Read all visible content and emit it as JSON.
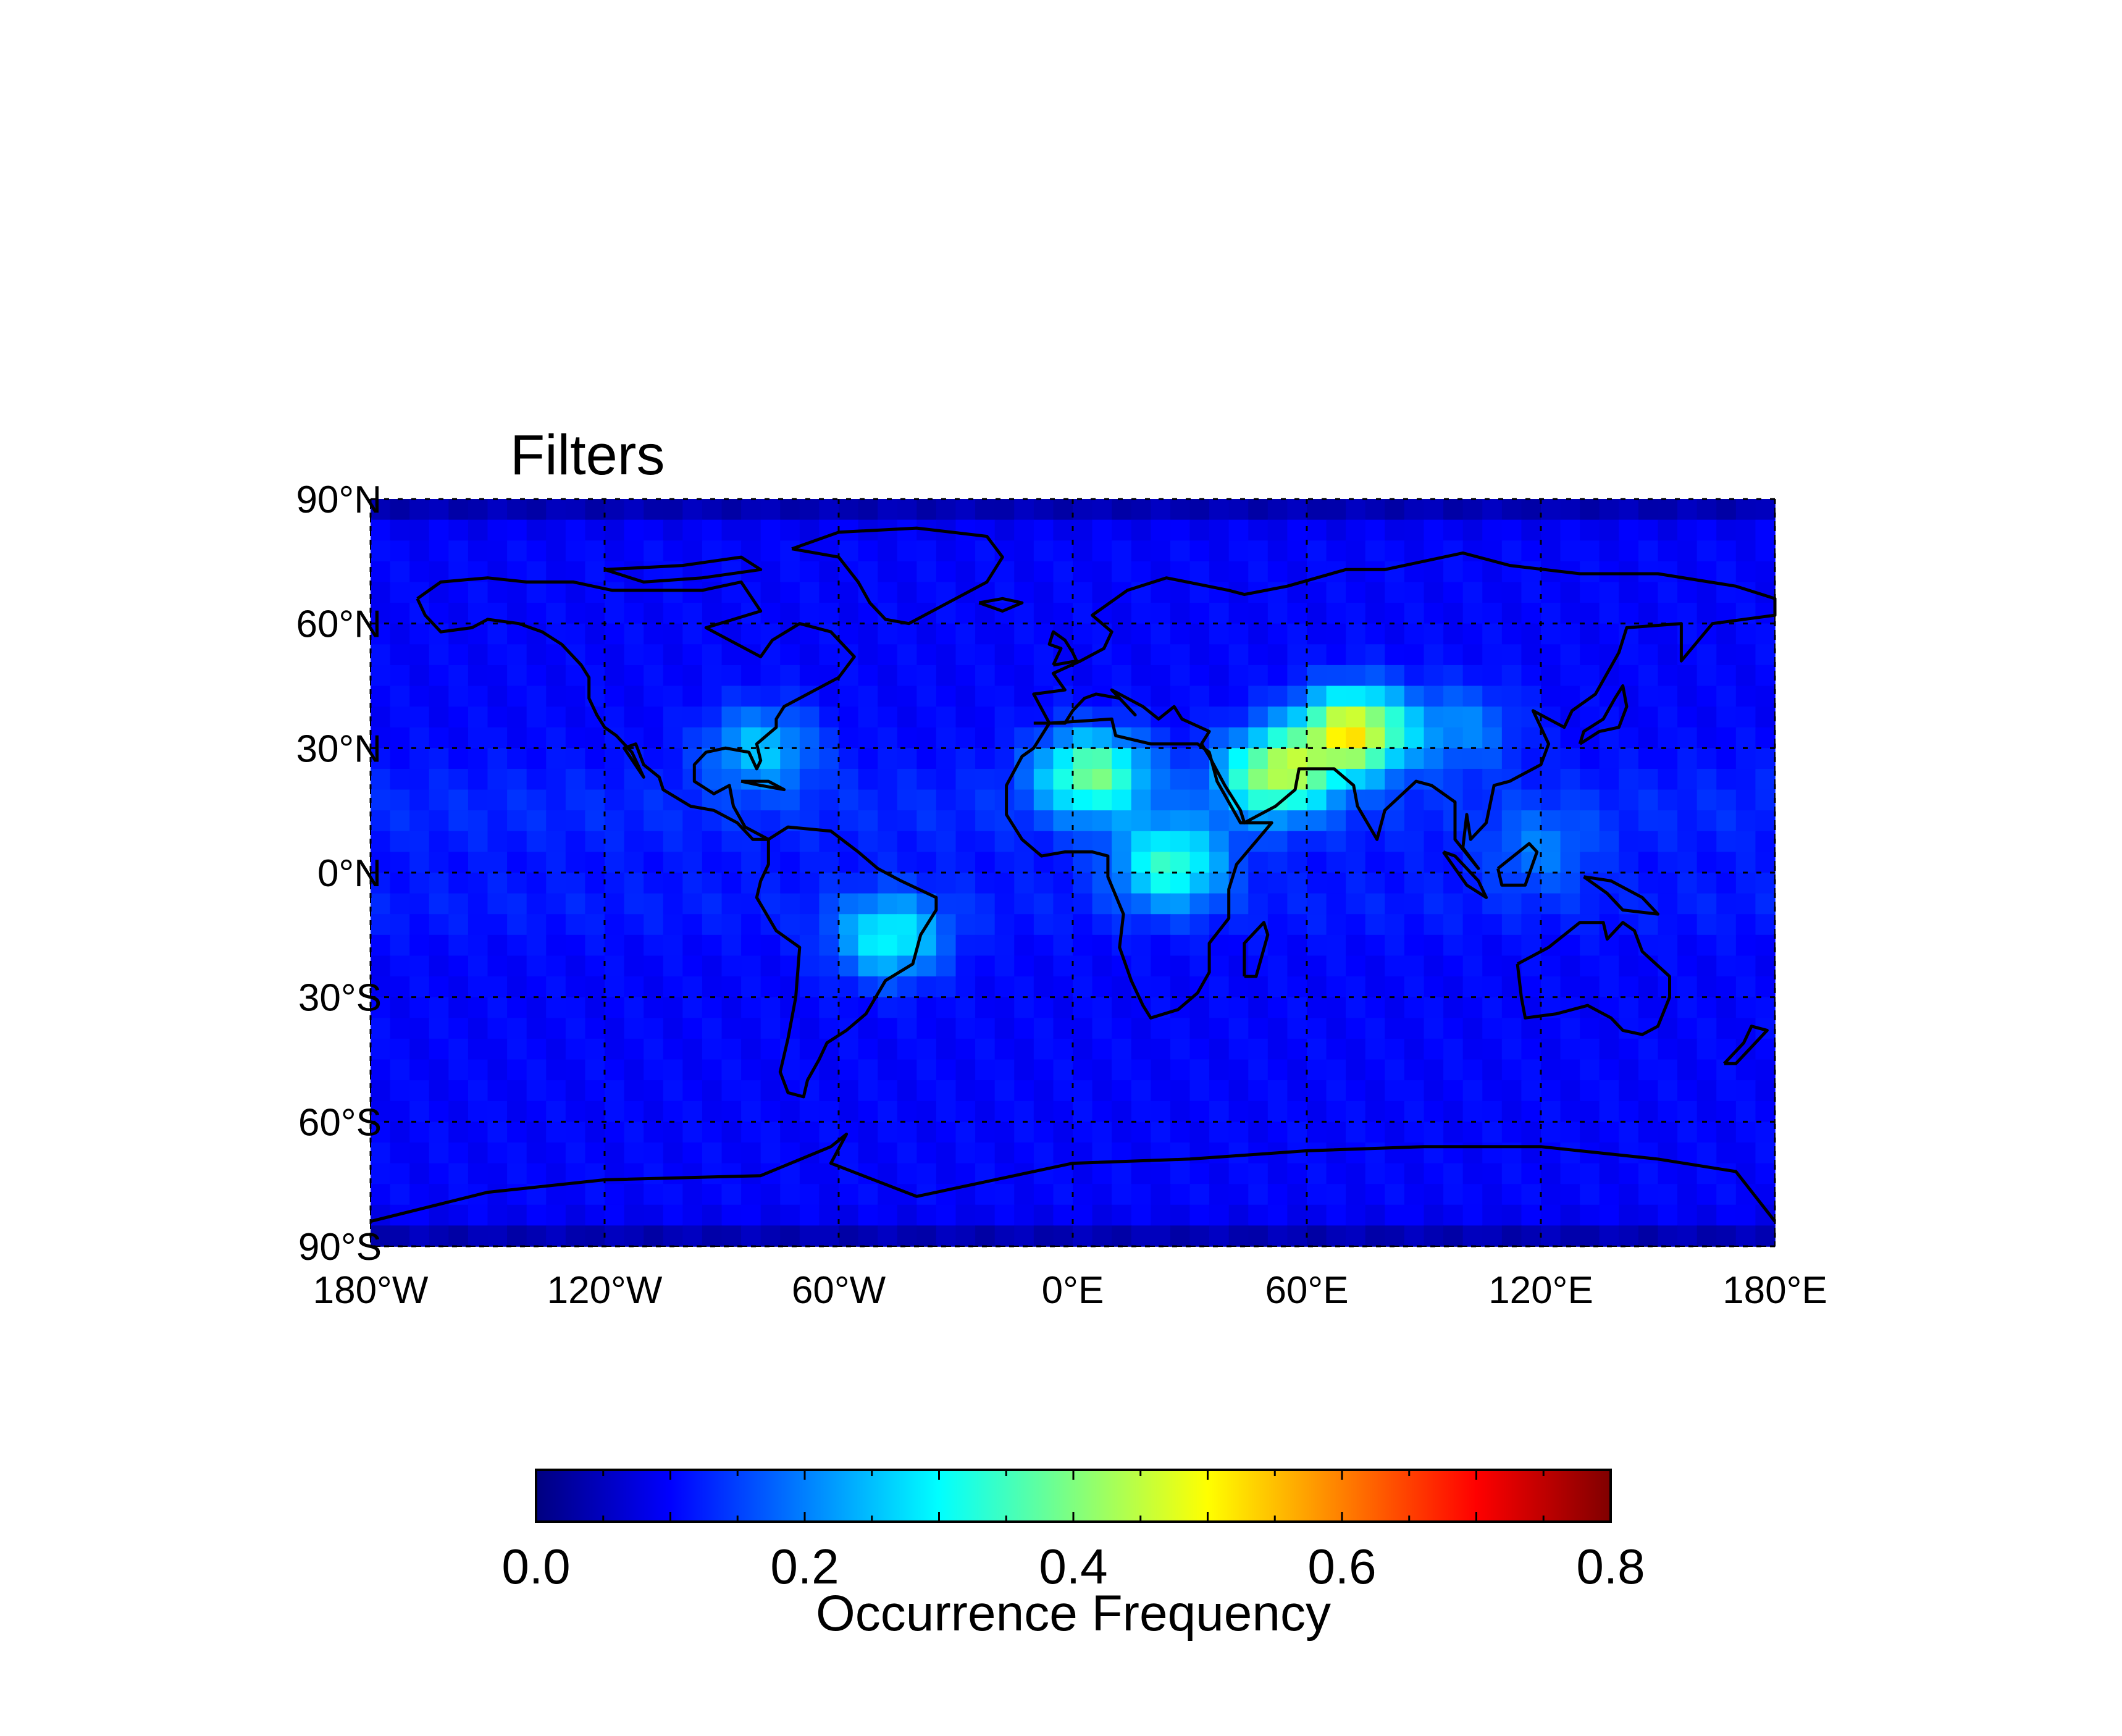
{
  "chart_data": {
    "type": "heatmap",
    "title": "Filters",
    "projection": "equirectangular world map with coastlines",
    "x_range": [
      -180,
      180
    ],
    "y_range": [
      -90,
      90
    ],
    "x_tick_labels": [
      "180°W",
      "120°W",
      "60°W",
      "0°E",
      "60°E",
      "120°E",
      "180°E"
    ],
    "x_tick_values": [
      -180,
      -120,
      -60,
      0,
      60,
      120,
      180
    ],
    "y_tick_labels": [
      "90°N",
      "60°N",
      "30°N",
      "0°N",
      "30°S",
      "60°S",
      "90°S"
    ],
    "y_tick_values": [
      90,
      60,
      30,
      0,
      -30,
      -60,
      -90
    ],
    "grid": "dotted at 60° longitude and 30° latitude",
    "colorbar": {
      "label": "Occurrence Frequency",
      "range": [
        0.0,
        0.8
      ],
      "tick_labels": [
        "0.0",
        "0.2",
        "0.4",
        "0.6",
        "0.8"
      ],
      "tick_values": [
        0.0,
        0.2,
        0.4,
        0.6,
        0.8
      ],
      "colormap": "jet",
      "placement": "bottom"
    },
    "hotspots": [
      {
        "lon": 72,
        "lat": 34,
        "value": 0.5
      },
      {
        "lon": 52,
        "lat": 24,
        "value": 0.42
      },
      {
        "lon": 5,
        "lat": 24,
        "value": 0.38
      },
      {
        "lon": 25,
        "lat": 2,
        "value": 0.33
      },
      {
        "lon": -47,
        "lat": -16,
        "value": 0.3
      },
      {
        "lon": -80,
        "lat": 30,
        "value": 0.25
      },
      {
        "lon": 100,
        "lat": 35,
        "value": 0.2
      },
      {
        "lon": 120,
        "lat": 5,
        "value": 0.18
      }
    ],
    "background_value": 0.1
  }
}
